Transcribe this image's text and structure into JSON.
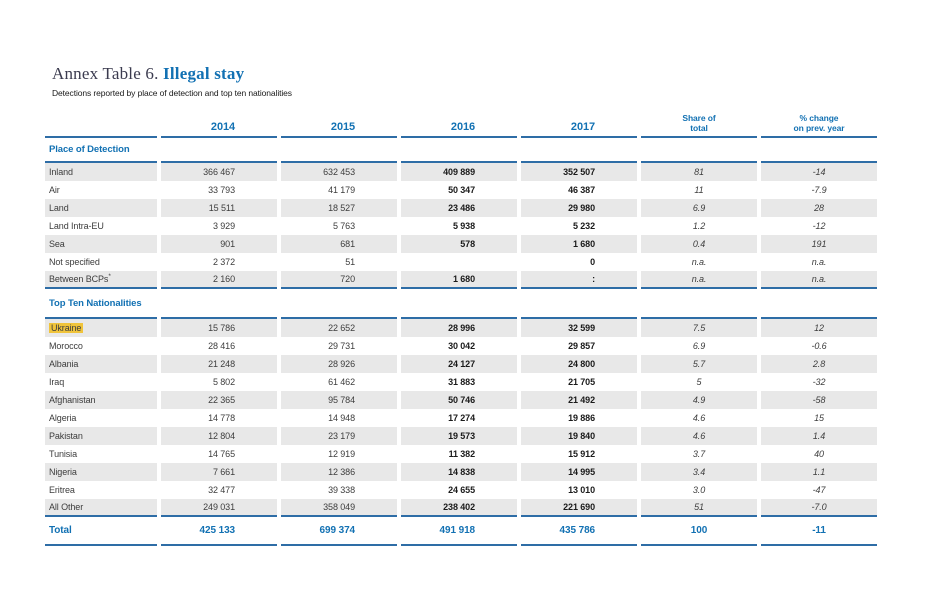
{
  "page": {
    "title_prefix": "Annex Table 6.",
    "title_emphasis": "Illegal stay",
    "subtitle": "Detections reported by place of detection and top ten nationalities"
  },
  "colors": {
    "accent_blue": "#1271B3",
    "rule_navy": "#2E6DA6",
    "stripe_gray": "#E8E8E8",
    "highlight_yellow": "#F0C43C"
  },
  "table": {
    "col_headers": {
      "y2014": "2014",
      "y2015": "2015",
      "y2016": "2016",
      "y2017": "2017",
      "share_line1": "Share of",
      "share_line2": "total",
      "change_line1": "% change",
      "change_line2": "on prev. year"
    },
    "sections": [
      {
        "title": "Place of Detection",
        "rows": [
          {
            "label": "Inland",
            "y2014": "366 467",
            "y2015": "632 453",
            "y2016": "409 889",
            "y2017": "352 507",
            "share": "81",
            "change": "-14"
          },
          {
            "label": "Air",
            "y2014": "33 793",
            "y2015": "41 179",
            "y2016": "50 347",
            "y2017": "46 387",
            "share": "11",
            "change": "-7.9"
          },
          {
            "label": "Land",
            "y2014": "15 511",
            "y2015": "18 527",
            "y2016": "23 486",
            "y2017": "29 980",
            "share": "6.9",
            "change": "28"
          },
          {
            "label": "Land Intra-EU",
            "y2014": "3 929",
            "y2015": "5 763",
            "y2016": "5 938",
            "y2017": "5 232",
            "share": "1.2",
            "change": "-12"
          },
          {
            "label": "Sea",
            "y2014": "901",
            "y2015": "681",
            "y2016": "578",
            "y2017": "1 680",
            "share": "0.4",
            "change": "191"
          },
          {
            "label": "Not specified",
            "y2014": "2 372",
            "y2015": "51",
            "y2016": "",
            "y2017": "0",
            "share": "n.a.",
            "change": "n.a."
          },
          {
            "label": "Between BCPs",
            "label_sup": "*",
            "y2014": "2 160",
            "y2015": "720",
            "y2016": "1 680",
            "y2017": ":",
            "share": "n.a.",
            "change": "n.a."
          }
        ]
      },
      {
        "title": "Top Ten Nationalities",
        "rows": [
          {
            "label": "Ukraine",
            "highlight": true,
            "y2014": "15 786",
            "y2015": "22 652",
            "y2016": "28 996",
            "y2017": "32 599",
            "share": "7.5",
            "change": "12"
          },
          {
            "label": "Morocco",
            "y2014": "28 416",
            "y2015": "29 731",
            "y2016": "30 042",
            "y2017": "29 857",
            "share": "6.9",
            "change": "-0.6"
          },
          {
            "label": "Albania",
            "y2014": "21 248",
            "y2015": "28 926",
            "y2016": "24 127",
            "y2017": "24 800",
            "share": "5.7",
            "change": "2.8"
          },
          {
            "label": "Iraq",
            "y2014": "5 802",
            "y2015": "61 462",
            "y2016": "31 883",
            "y2017": "21 705",
            "share": "5",
            "change": "-32"
          },
          {
            "label": "Afghanistan",
            "y2014": "22 365",
            "y2015": "95 784",
            "y2016": "50 746",
            "y2017": "21 492",
            "share": "4.9",
            "change": "-58"
          },
          {
            "label": "Algeria",
            "y2014": "14 778",
            "y2015": "14 948",
            "y2016": "17 274",
            "y2017": "19 886",
            "share": "4.6",
            "change": "15"
          },
          {
            "label": "Pakistan",
            "y2014": "12 804",
            "y2015": "23 179",
            "y2016": "19 573",
            "y2017": "19 840",
            "share": "4.6",
            "change": "1.4"
          },
          {
            "label": "Tunisia",
            "y2014": "14 765",
            "y2015": "12 919",
            "y2016": "11 382",
            "y2017": "15 912",
            "share": "3.7",
            "change": "40"
          },
          {
            "label": "Nigeria",
            "y2014": "7 661",
            "y2015": "12 386",
            "y2016": "14 838",
            "y2017": "14 995",
            "share": "3.4",
            "change": "1.1"
          },
          {
            "label": "Eritrea",
            "y2014": "32 477",
            "y2015": "39 338",
            "y2016": "24 655",
            "y2017": "13 010",
            "share": "3.0",
            "change": "-47"
          },
          {
            "label": "All Other",
            "y2014": "249 031",
            "y2015": "358 049",
            "y2016": "238 402",
            "y2017": "221 690",
            "share": "51",
            "change": "-7.0"
          }
        ]
      }
    ],
    "total": {
      "label": "Total",
      "y2014": "425 133",
      "y2015": "699 374",
      "y2016": "491 918",
      "y2017": "435 786",
      "share": "100",
      "change": "-11"
    }
  }
}
